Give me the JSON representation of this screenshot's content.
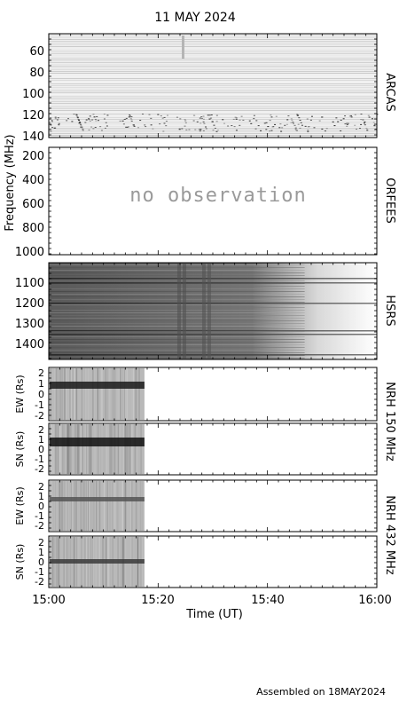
{
  "title": "11 MAY 2024",
  "footer": "Assembled on 18MAY2024",
  "x_axis": {
    "label": "Time (UT)",
    "ticks": [
      "15:00",
      "15:20",
      "15:40",
      "16:00"
    ],
    "range_minutes": [
      0,
      60
    ]
  },
  "y_axis_label": "Frequency (MHz)",
  "colors": {
    "frame": "#000000",
    "noobs": "#9a9a9a",
    "bg": "#ffffff"
  },
  "chart_data": [
    {
      "type": "heatmap",
      "panel": "ARCAS",
      "y_ticks": [
        "60",
        "80",
        "100",
        "120",
        "140"
      ],
      "y_tick_values": [
        60,
        80,
        100,
        120,
        140
      ],
      "ylim": [
        40,
        145
      ],
      "observed_minutes": [
        0,
        60
      ]
    },
    {
      "type": "heatmap",
      "panel": "ORFEES",
      "y_ticks": [
        "200",
        "400",
        "600",
        "800",
        "1000"
      ],
      "y_tick_values": [
        200,
        400,
        600,
        800,
        1000
      ],
      "ylim": [
        145,
        1010
      ],
      "annotation": "no observation"
    },
    {
      "type": "heatmap",
      "panel": "HSRS",
      "y_ticks": [
        "1100",
        "1200",
        "1300",
        "1400"
      ],
      "y_tick_values": [
        1100,
        1200,
        1300,
        1400
      ],
      "ylim": [
        1010,
        1480
      ],
      "observed_minutes": [
        0,
        60
      ]
    },
    {
      "type": "heatmap",
      "panel": "NRH 150 MHz",
      "right_label": "NRH 150 MHz",
      "subpanels": [
        {
          "axis_label": "EW (Rs)",
          "y_ticks": [
            "2",
            "1",
            "0",
            "-1",
            "-2"
          ],
          "ylim": [
            -2.3,
            2.3
          ]
        },
        {
          "axis_label": "SN (Rs)",
          "y_ticks": [
            "2",
            "1",
            "0",
            "-1",
            "-2"
          ],
          "ylim": [
            -2.3,
            2.3
          ]
        }
      ],
      "observed_minutes": [
        0,
        17.5
      ]
    },
    {
      "type": "heatmap",
      "panel": "NRH 432 MHz",
      "right_label": "NRH 432 MHz",
      "subpanels": [
        {
          "axis_label": "EW (Rs)",
          "y_ticks": [
            "2",
            "1",
            "0",
            "-1",
            "-2"
          ],
          "ylim": [
            -2.3,
            2.3
          ]
        },
        {
          "axis_label": "SN (Rs)",
          "y_ticks": [
            "2",
            "1",
            "0",
            "-1",
            "-2"
          ],
          "ylim": [
            -2.3,
            2.3
          ]
        }
      ],
      "observed_minutes": [
        0,
        17.5
      ]
    }
  ]
}
